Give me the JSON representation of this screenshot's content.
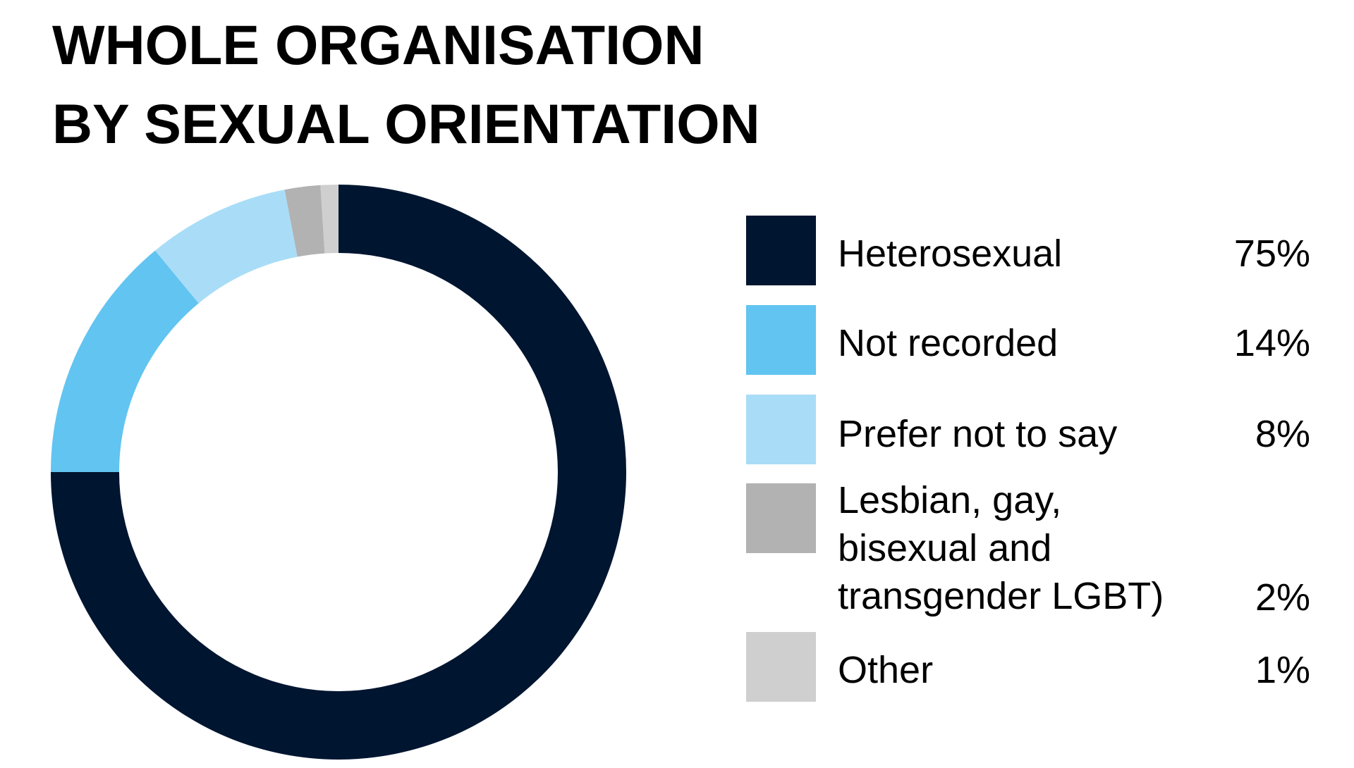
{
  "chart_data": {
    "type": "pie",
    "title_lines": [
      "WHOLE ORGANISATION",
      "BY SEXUAL ORIENTATION"
    ],
    "donut": true,
    "slices": [
      {
        "label": "Heterosexual",
        "value": 75,
        "value_label": "75%",
        "color": "#001530"
      },
      {
        "label": "Not recorded",
        "value": 14,
        "value_label": "14%",
        "color": "#62C4F0"
      },
      {
        "label": "Prefer not to say",
        "value": 8,
        "value_label": "8%",
        "color": "#A9DDF7"
      },
      {
        "label": "Lesbian, gay,\nbisexual and\ntransgender LGBT)",
        "value": 2,
        "value_label": "2%",
        "color": "#B2B2B2"
      },
      {
        "label": "Other",
        "value": 1,
        "value_label": "1%",
        "color": "#CFCFCF"
      }
    ],
    "legend_position": "right"
  }
}
